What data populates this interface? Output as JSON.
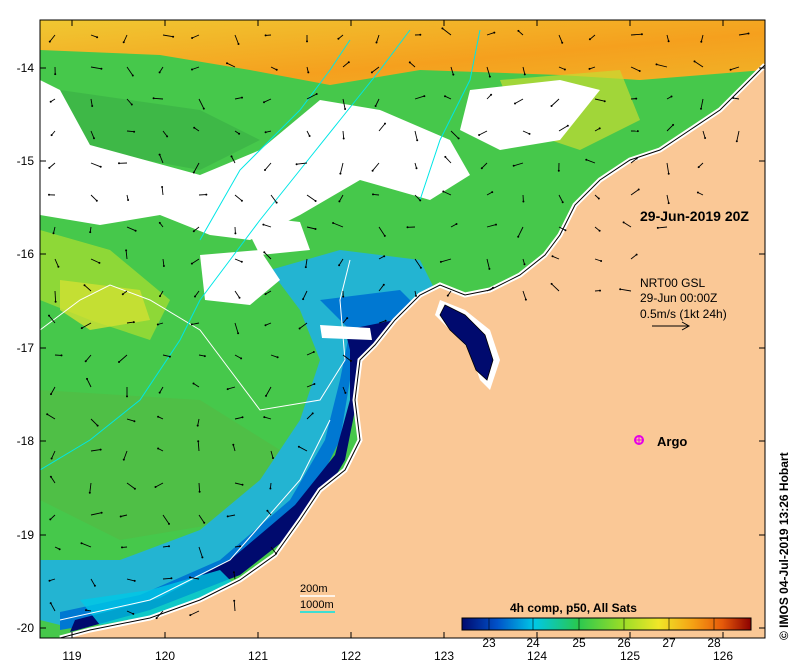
{
  "map": {
    "date_label": "29-Jun-2019 20Z",
    "current_info": {
      "line1": "NRT00 GSL",
      "line2": "29-Jun 00:00Z",
      "line3": "0.5m/s (1kt 24h)"
    },
    "argo_label": "Argo",
    "contours": {
      "shallow": "200m",
      "deep": "1000m"
    },
    "x_ticks": [
      "119",
      "120",
      "121",
      "122",
      "123",
      "124",
      "125",
      "126"
    ],
    "y_ticks": [
      "-14",
      "-15",
      "-16",
      "-17",
      "-18",
      "-19",
      "-20"
    ],
    "colorbar": {
      "title": "4h comp, p50, All Sats",
      "ticks": [
        "23",
        "24",
        "25",
        "26",
        "27",
        "28"
      ],
      "stops": [
        "#000a6e",
        "#0050c8",
        "#00c8e6",
        "#28c850",
        "#96dc28",
        "#f0e628",
        "#f5a014",
        "#e65a0a",
        "#8c0000"
      ]
    },
    "credit": "© IMOS 04-Jul-2019 13:26 Hobart",
    "colors": {
      "land": "#fac896",
      "cloud": "#ffffff",
      "deep_sst": "#000a6e",
      "warm_sst": "#f0b428",
      "mid_sst": "#46c84b"
    }
  }
}
